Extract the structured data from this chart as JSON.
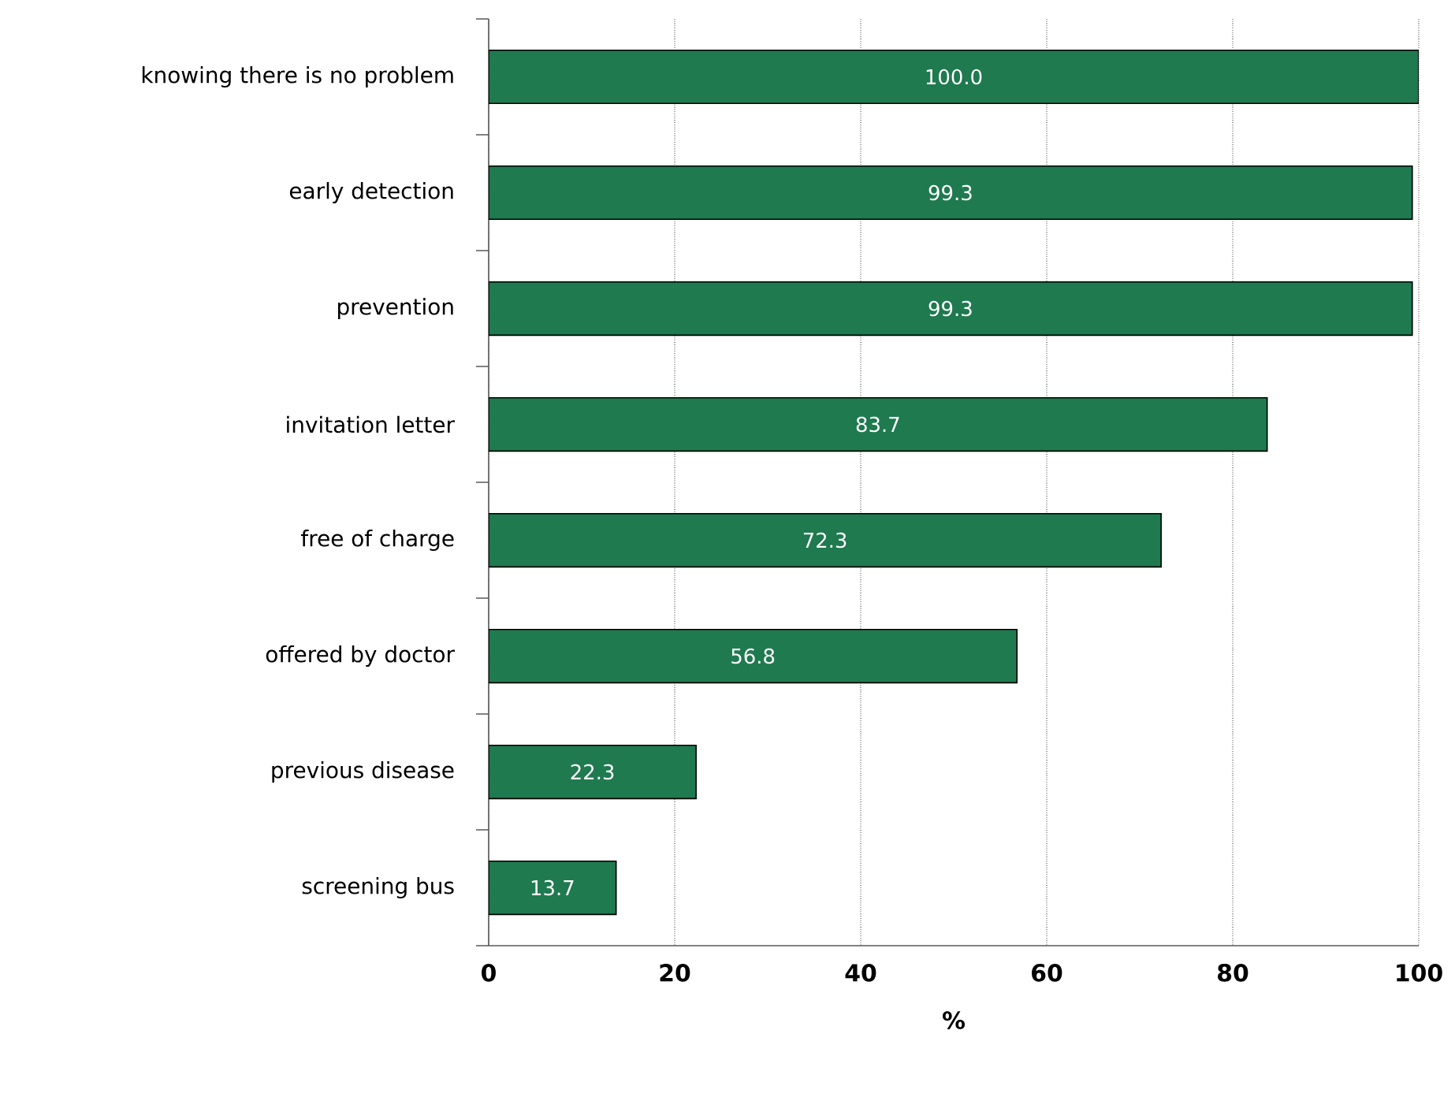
{
  "chart_data": {
    "type": "bar",
    "orientation": "horizontal",
    "xlabel": "%",
    "categories": [
      "knowing there is no problem",
      "early detection",
      "prevention",
      "invitation letter",
      "free of charge",
      "offered by doctor",
      "previous disease",
      "screening bus"
    ],
    "values": [
      100.0,
      99.3,
      99.3,
      83.7,
      72.3,
      56.8,
      22.3,
      13.7
    ],
    "value_labels": [
      "100.0",
      "99.3",
      "99.3",
      "83.7",
      "72.3",
      "56.8",
      "22.3",
      "13.7"
    ],
    "color": "#1f7a4f",
    "xlim": [
      0,
      100
    ],
    "xticks": [
      0,
      20,
      40,
      60,
      80,
      100
    ],
    "grid": "x"
  }
}
